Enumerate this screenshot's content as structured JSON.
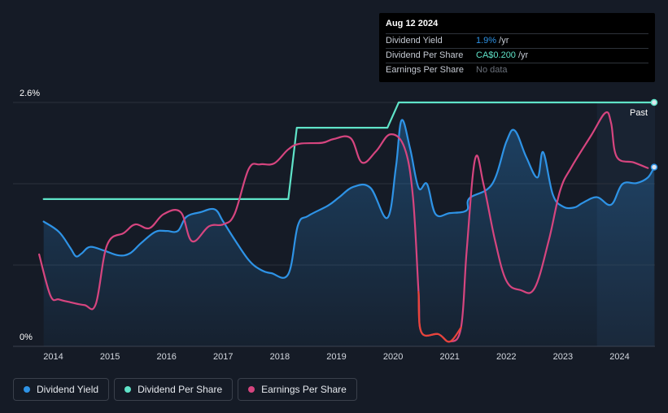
{
  "tooltip": {
    "date": "Aug 12 2024",
    "rows": [
      {
        "label": "Dividend Yield",
        "value": "1.9%",
        "unit": " /yr"
      },
      {
        "label": "Dividend Per Share",
        "value": "CA$0.200",
        "unit": " /yr"
      },
      {
        "label": "Earnings Per Share",
        "value": "No data",
        "unit": ""
      }
    ]
  },
  "past_label": "Past",
  "legend": [
    {
      "label": "Dividend Yield",
      "color": "#2e93e6"
    },
    {
      "label": "Dividend Per Share",
      "color": "#5fe3c8"
    },
    {
      "label": "Earnings Per Share",
      "color": "#d6457f"
    }
  ],
  "chart_data": {
    "type": "line",
    "ylim": [
      0,
      2.6
    ],
    "y_tick_labels": [
      "2.6%",
      "0%"
    ],
    "x_tick_labels": [
      "2014",
      "2015",
      "2016",
      "2017",
      "2018",
      "2019",
      "2020",
      "2021",
      "2022",
      "2023",
      "2024"
    ],
    "xlim": [
      2013.5,
      2024.65
    ],
    "series": [
      {
        "name": "Dividend Yield",
        "color": "#2e93e6",
        "area": true,
        "points": [
          [
            2013.83,
            1.33
          ],
          [
            2014.1,
            1.22
          ],
          [
            2014.3,
            1.05
          ],
          [
            2014.4,
            0.96
          ],
          [
            2014.5,
            0.99
          ],
          [
            2014.65,
            1.06
          ],
          [
            2014.9,
            1.02
          ],
          [
            2015.15,
            0.97
          ],
          [
            2015.35,
            0.99
          ],
          [
            2015.55,
            1.1
          ],
          [
            2015.8,
            1.22
          ],
          [
            2016.0,
            1.23
          ],
          [
            2016.2,
            1.23
          ],
          [
            2016.35,
            1.38
          ],
          [
            2016.6,
            1.43
          ],
          [
            2016.85,
            1.46
          ],
          [
            2017.0,
            1.33
          ],
          [
            2017.2,
            1.14
          ],
          [
            2017.45,
            0.92
          ],
          [
            2017.65,
            0.82
          ],
          [
            2017.85,
            0.78
          ],
          [
            2018.15,
            0.77
          ],
          [
            2018.32,
            1.29
          ],
          [
            2018.5,
            1.39
          ],
          [
            2018.85,
            1.5
          ],
          [
            2019.05,
            1.59
          ],
          [
            2019.3,
            1.7
          ],
          [
            2019.6,
            1.69
          ],
          [
            2019.9,
            1.37
          ],
          [
            2020.05,
            1.91
          ],
          [
            2020.15,
            2.41
          ],
          [
            2020.3,
            2.11
          ],
          [
            2020.45,
            1.69
          ],
          [
            2020.6,
            1.73
          ],
          [
            2020.75,
            1.41
          ],
          [
            2021.0,
            1.42
          ],
          [
            2021.3,
            1.45
          ],
          [
            2021.35,
            1.58
          ],
          [
            2021.75,
            1.73
          ],
          [
            2022.0,
            2.18
          ],
          [
            2022.15,
            2.3
          ],
          [
            2022.35,
            2.02
          ],
          [
            2022.55,
            1.8
          ],
          [
            2022.65,
            2.07
          ],
          [
            2022.82,
            1.62
          ],
          [
            2023.0,
            1.49
          ],
          [
            2023.2,
            1.48
          ],
          [
            2023.35,
            1.53
          ],
          [
            2023.6,
            1.59
          ],
          [
            2023.85,
            1.51
          ],
          [
            2024.05,
            1.73
          ],
          [
            2024.3,
            1.74
          ],
          [
            2024.5,
            1.8
          ],
          [
            2024.61,
            1.91
          ]
        ]
      },
      {
        "name": "Dividend Per Share",
        "color": "#5fe3c8",
        "area": false,
        "points": [
          [
            2013.83,
            1.57
          ],
          [
            2018.15,
            1.57
          ],
          [
            2018.3,
            2.33
          ],
          [
            2019.9,
            2.33
          ],
          [
            2020.1,
            2.6
          ],
          [
            2024.61,
            2.6
          ]
        ]
      },
      {
        "name": "Earnings Per Share",
        "color": "#d6457f",
        "area": false,
        "points": [
          [
            2013.75,
            0.98
          ],
          [
            2013.95,
            0.54
          ],
          [
            2014.1,
            0.5
          ],
          [
            2014.3,
            0.47
          ],
          [
            2014.55,
            0.44
          ],
          [
            2014.75,
            0.45
          ],
          [
            2014.95,
            1.08
          ],
          [
            2015.25,
            1.21
          ],
          [
            2015.45,
            1.3
          ],
          [
            2015.7,
            1.26
          ],
          [
            2015.95,
            1.41
          ],
          [
            2016.25,
            1.43
          ],
          [
            2016.45,
            1.12
          ],
          [
            2016.75,
            1.28
          ],
          [
            2017.0,
            1.3
          ],
          [
            2017.2,
            1.41
          ],
          [
            2017.45,
            1.89
          ],
          [
            2017.65,
            1.94
          ],
          [
            2017.9,
            1.95
          ],
          [
            2018.15,
            2.1
          ],
          [
            2018.35,
            2.16
          ],
          [
            2018.75,
            2.17
          ],
          [
            2018.95,
            2.21
          ],
          [
            2019.25,
            2.22
          ],
          [
            2019.45,
            1.96
          ],
          [
            2019.7,
            2.08
          ],
          [
            2019.95,
            2.26
          ],
          [
            2020.2,
            2.12
          ],
          [
            2020.35,
            1.6
          ],
          [
            2020.45,
            0.58
          ],
          [
            2020.5,
            0.15
          ],
          [
            2020.8,
            0.13
          ],
          [
            2021.0,
            0.05
          ],
          [
            2021.2,
            0.2
          ],
          [
            2021.3,
            1.02
          ],
          [
            2021.45,
            2.0
          ],
          [
            2021.6,
            1.72
          ],
          [
            2021.8,
            1.13
          ],
          [
            2022.0,
            0.7
          ],
          [
            2022.25,
            0.6
          ],
          [
            2022.5,
            0.62
          ],
          [
            2022.75,
            1.13
          ],
          [
            2022.95,
            1.66
          ],
          [
            2023.15,
            1.91
          ],
          [
            2023.5,
            2.25
          ],
          [
            2023.75,
            2.49
          ],
          [
            2023.85,
            2.38
          ],
          [
            2023.95,
            2.02
          ],
          [
            2024.25,
            1.96
          ],
          [
            2024.5,
            1.9
          ]
        ]
      }
    ],
    "end_markers": [
      {
        "series": "Dividend Per Share",
        "x": 2024.61,
        "y": 2.6
      },
      {
        "series": "Dividend Yield",
        "x": 2024.61,
        "y": 1.91
      }
    ]
  }
}
